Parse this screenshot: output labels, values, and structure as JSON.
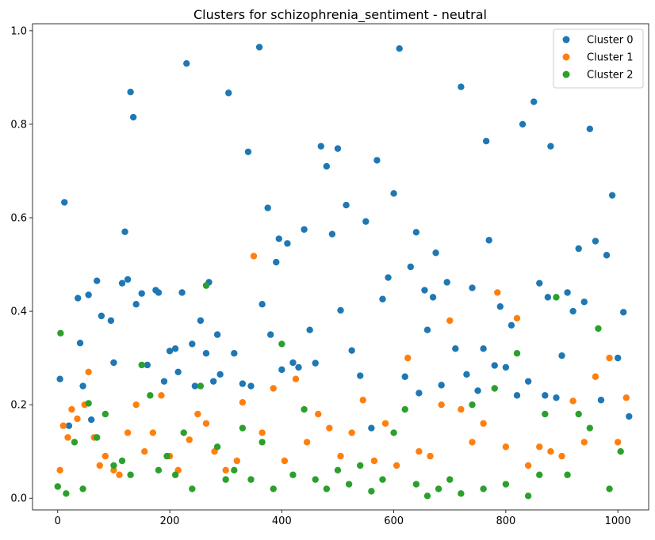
{
  "chart_data": {
    "type": "scatter",
    "title": "Clusters for schizophrenia_sentiment - neutral",
    "xlabel": "",
    "ylabel": "",
    "xlim": [
      -45,
      1055
    ],
    "ylim": [
      -0.025,
      1.015
    ],
    "x_ticks": [
      0,
      200,
      400,
      600,
      800,
      1000
    ],
    "x_tick_labels": [
      "0",
      "200",
      "400",
      "600",
      "800",
      "1000"
    ],
    "y_ticks": [
      0.0,
      0.2,
      0.4,
      0.6,
      0.8,
      1.0
    ],
    "y_tick_labels": [
      "0.0",
      "0.2",
      "0.4",
      "0.6",
      "0.8",
      "1.0"
    ],
    "grid": false,
    "legend_position": "upper right",
    "series": [
      {
        "name": "Cluster 0",
        "color": "#1f77b4",
        "x": [
          4,
          12,
          20,
          36,
          40,
          45,
          55,
          60,
          70,
          78,
          95,
          100,
          115,
          120,
          125,
          130,
          135,
          140,
          150,
          160,
          175,
          180,
          190,
          200,
          210,
          215,
          222,
          230,
          240,
          245,
          255,
          265,
          270,
          278,
          285,
          290,
          305,
          315,
          330,
          340,
          345,
          360,
          365,
          375,
          380,
          390,
          395,
          400,
          410,
          420,
          430,
          440,
          450,
          460,
          470,
          480,
          490,
          500,
          505,
          515,
          525,
          540,
          550,
          560,
          570,
          580,
          590,
          600,
          610,
          620,
          630,
          640,
          645,
          655,
          660,
          670,
          675,
          685,
          695,
          710,
          720,
          730,
          740,
          750,
          760,
          765,
          770,
          780,
          790,
          800,
          810,
          820,
          830,
          840,
          850,
          860,
          870,
          875,
          880,
          890,
          900,
          910,
          920,
          930,
          940,
          950,
          960,
          970,
          980,
          990,
          1000,
          1010,
          1020
        ],
        "y": [
          0.255,
          0.633,
          0.155,
          0.428,
          0.332,
          0.24,
          0.435,
          0.168,
          0.465,
          0.39,
          0.38,
          0.29,
          0.46,
          0.57,
          0.468,
          0.869,
          0.815,
          0.415,
          0.438,
          0.285,
          0.445,
          0.44,
          0.25,
          0.315,
          0.32,
          0.27,
          0.44,
          0.93,
          0.33,
          0.24,
          0.38,
          0.31,
          0.462,
          0.25,
          0.35,
          0.265,
          0.867,
          0.31,
          0.245,
          0.741,
          0.24,
          0.965,
          0.415,
          0.621,
          0.35,
          0.505,
          0.555,
          0.275,
          0.545,
          0.29,
          0.28,
          0.575,
          0.36,
          0.289,
          0.753,
          0.71,
          0.565,
          0.748,
          0.402,
          0.627,
          0.316,
          0.262,
          0.592,
          0.15,
          0.723,
          0.426,
          0.472,
          0.652,
          0.962,
          0.26,
          0.495,
          0.569,
          0.225,
          0.445,
          0.36,
          0.43,
          0.525,
          0.242,
          0.462,
          0.32,
          0.88,
          0.265,
          0.45,
          0.23,
          0.32,
          0.764,
          0.552,
          0.284,
          0.41,
          0.28,
          0.37,
          0.22,
          0.8,
          0.25,
          0.848,
          0.46,
          0.22,
          0.43,
          0.753,
          0.215,
          0.305,
          0.44,
          0.4,
          0.534,
          0.42,
          0.79,
          0.55,
          0.21,
          0.52,
          0.648,
          0.3,
          0.398,
          0.175
        ],
        "ticks_unused": []
      },
      {
        "name": "Cluster 1",
        "color": "#ff7f0e",
        "x": [
          4,
          10,
          18,
          25,
          35,
          48,
          55,
          65,
          75,
          85,
          100,
          110,
          125,
          140,
          155,
          170,
          185,
          200,
          215,
          235,
          250,
          265,
          280,
          300,
          320,
          330,
          350,
          365,
          385,
          405,
          425,
          445,
          465,
          485,
          505,
          525,
          545,
          565,
          585,
          605,
          625,
          645,
          665,
          685,
          700,
          720,
          740,
          760,
          785,
          800,
          820,
          840,
          860,
          880,
          900,
          920,
          940,
          960,
          985,
          1000,
          1015
        ],
        "y": [
          0.06,
          0.155,
          0.13,
          0.19,
          0.17,
          0.2,
          0.27,
          0.13,
          0.07,
          0.09,
          0.06,
          0.05,
          0.14,
          0.2,
          0.1,
          0.14,
          0.22,
          0.09,
          0.06,
          0.125,
          0.18,
          0.16,
          0.1,
          0.06,
          0.08,
          0.205,
          0.518,
          0.14,
          0.235,
          0.08,
          0.255,
          0.12,
          0.18,
          0.15,
          0.09,
          0.14,
          0.21,
          0.08,
          0.16,
          0.07,
          0.3,
          0.1,
          0.09,
          0.2,
          0.38,
          0.19,
          0.12,
          0.16,
          0.44,
          0.11,
          0.385,
          0.07,
          0.11,
          0.1,
          0.09,
          0.208,
          0.12,
          0.26,
          0.3,
          0.12,
          0.215
        ]
      },
      {
        "name": "Cluster 2",
        "color": "#2ca02c",
        "x": [
          0,
          5,
          15,
          30,
          45,
          55,
          70,
          85,
          100,
          115,
          130,
          150,
          165,
          180,
          195,
          210,
          225,
          240,
          255,
          265,
          285,
          300,
          315,
          330,
          345,
          365,
          385,
          400,
          420,
          440,
          460,
          480,
          500,
          520,
          540,
          560,
          580,
          600,
          620,
          640,
          660,
          680,
          700,
          720,
          740,
          760,
          780,
          800,
          820,
          840,
          860,
          870,
          890,
          910,
          930,
          950,
          965,
          985,
          1005
        ],
        "y": [
          0.025,
          0.353,
          0.01,
          0.12,
          0.02,
          0.203,
          0.13,
          0.18,
          0.07,
          0.08,
          0.05,
          0.285,
          0.22,
          0.06,
          0.09,
          0.05,
          0.14,
          0.02,
          0.24,
          0.455,
          0.11,
          0.04,
          0.06,
          0.15,
          0.04,
          0.12,
          0.02,
          0.33,
          0.05,
          0.19,
          0.04,
          0.02,
          0.06,
          0.03,
          0.07,
          0.015,
          0.04,
          0.14,
          0.19,
          0.03,
          0.005,
          0.02,
          0.04,
          0.01,
          0.2,
          0.02,
          0.235,
          0.03,
          0.31,
          0.005,
          0.05,
          0.18,
          0.43,
          0.05,
          0.18,
          0.15,
          0.363,
          0.02,
          0.1
        ]
      }
    ]
  }
}
